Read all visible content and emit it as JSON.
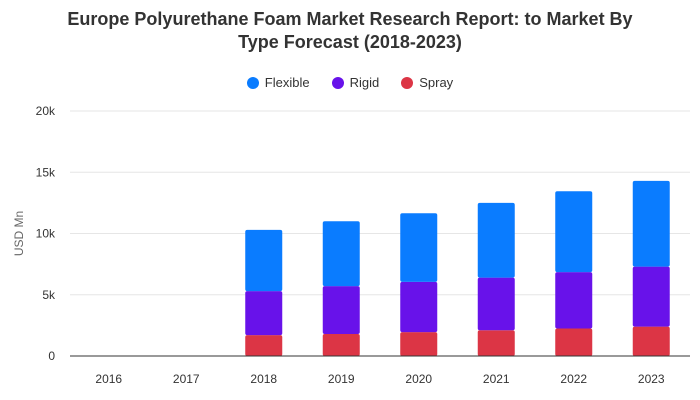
{
  "title_lines": [
    "Europe Polyurethane Foam Market Research Report: to Market By",
    "Type Forecast (2018-2023)"
  ],
  "colors": {
    "Flexible": "#0a7cff",
    "Rigid": "#6812ea",
    "Spray": "#dc3545",
    "grid": "#e6e6e6",
    "axis": "#333333",
    "text": "#333333"
  },
  "chart_data": {
    "type": "bar",
    "stacked": true,
    "title": "Europe Polyurethane Foam Market Research Report: to Market By Type Forecast (2018-2023)",
    "xlabel": "",
    "ylabel": "USD Mn",
    "categories": [
      "2016",
      "2017",
      "2018",
      "2019",
      "2020",
      "2021",
      "2022",
      "2023"
    ],
    "series": [
      {
        "name": "Spray",
        "values": [
          0,
          0,
          1700,
          1800,
          1950,
          2100,
          2250,
          2400
        ]
      },
      {
        "name": "Rigid",
        "values": [
          0,
          0,
          3600,
          3900,
          4100,
          4300,
          4600,
          4900
        ]
      },
      {
        "name": "Flexible",
        "values": [
          0,
          0,
          5000,
          5300,
          5600,
          6100,
          6600,
          7000
        ]
      }
    ],
    "legend_order": [
      "Flexible",
      "Rigid",
      "Spray"
    ],
    "ylim": [
      0,
      20000
    ],
    "yticks": [
      {
        "value": 0,
        "label": "0"
      },
      {
        "value": 5000,
        "label": "5k"
      },
      {
        "value": 10000,
        "label": "10k"
      },
      {
        "value": 15000,
        "label": "15k"
      },
      {
        "value": 20000,
        "label": "20k"
      }
    ],
    "grid": true,
    "legend_position": "top"
  }
}
